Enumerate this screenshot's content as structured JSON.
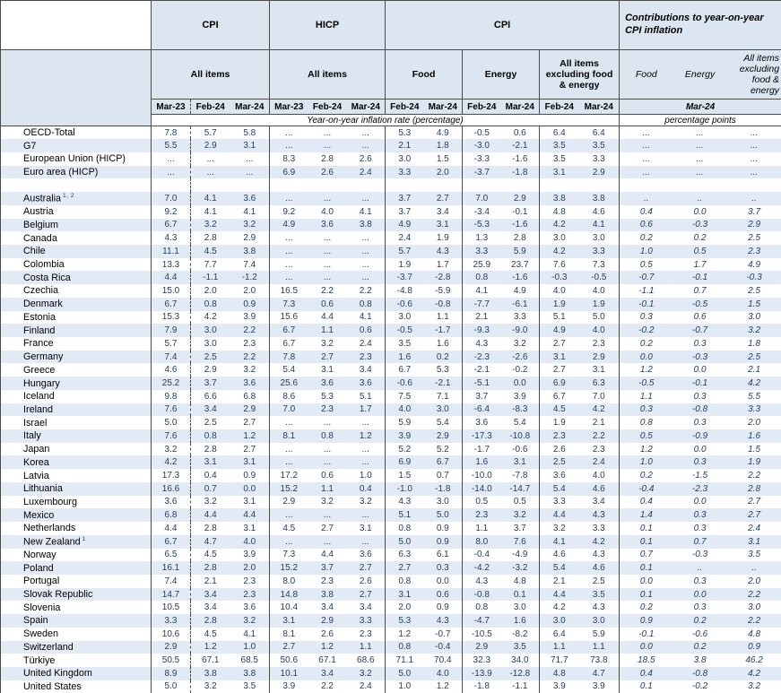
{
  "colors": {
    "header-fill": "#dce6f1",
    "zebra-fill": "#e2ebf5",
    "line": "#4a4a4a",
    "number": "#1f3a5f",
    "text": "#000000"
  },
  "header": {
    "group_cpi_all": "CPI",
    "group_hicp": "HICP",
    "group_cpi_components": "CPI",
    "group_contributions": "Contributions to year-on-year CPI inflation",
    "sub_all_items_cpi": "All items",
    "sub_all_items_hicp": "All items",
    "sub_food": "Food",
    "sub_energy": "Energy",
    "sub_core": "All items excluding food & energy",
    "sub_contrib_food": "Food",
    "sub_contrib_energy": "Energy",
    "sub_contrib_core": "All items excluding food & energy",
    "periods": [
      "Mar-23",
      "Feb-24",
      "Mar-24",
      "Mar-23",
      "Feb-24",
      "Mar-24",
      "Feb-24",
      "Mar-24",
      "Feb-24",
      "Mar-24",
      "Feb-24",
      "Mar-24"
    ],
    "contrib_period": "Mar-24",
    "unit_rates": "Year-on-year inflation rate (percentage)",
    "unit_points": "percentage points"
  },
  "columns": {
    "keys": [
      "cpi-mar23",
      "cpi-feb24",
      "cpi-mar24",
      "hicp-mar23",
      "hicp-feb24",
      "hicp-mar24",
      "food-feb24",
      "food-mar24",
      "energy-feb24",
      "energy-mar24",
      "core-feb24",
      "core-mar24",
      "contrib-food",
      "contrib-energy",
      "contrib-core"
    ]
  },
  "rows": [
    {
      "name": "OECD-Total",
      "sup": "",
      "values": [
        "7.8",
        "5.7",
        "5.8",
        "...",
        "...",
        "...",
        "5.3",
        "4.9",
        "-0.5",
        "0.6",
        "6.4",
        "6.4",
        "...",
        "...",
        "..."
      ]
    },
    {
      "name": "G7",
      "sup": "",
      "values": [
        "5.5",
        "2.9",
        "3.1",
        "...",
        "...",
        "...",
        "2.1",
        "1.8",
        "-3.0",
        "-2.1",
        "3.5",
        "3.5",
        "...",
        "...",
        "..."
      ]
    },
    {
      "name": "European Union (HICP)",
      "sup": "",
      "values": [
        "...",
        "...",
        "...",
        "8.3",
        "2.8",
        "2.6",
        "3.0",
        "1.5",
        "-3.3",
        "-1.6",
        "3.5",
        "3.3",
        "...",
        "...",
        "..."
      ]
    },
    {
      "name": "Euro area (HICP)",
      "sup": "",
      "values": [
        "...",
        "...",
        "...",
        "6.9",
        "2.6",
        "2.4",
        "3.3",
        "2.0",
        "-3.7",
        "-1.8",
        "3.1",
        "2.9",
        "...",
        "...",
        "..."
      ]
    },
    {
      "name": "",
      "sup": "",
      "values": [
        "",
        "",
        "",
        "",
        "",
        "",
        "",
        "",
        "",
        "",
        "",
        "",
        "",
        "",
        ""
      ]
    },
    {
      "name": "Australia",
      "sup": "1, 2",
      "values": [
        "7.0",
        "4.1",
        "3.6",
        "...",
        "...",
        "...",
        "3.7",
        "2.7",
        "7.0",
        "2.9",
        "3.8",
        "3.8",
        "..",
        "..",
        ".."
      ]
    },
    {
      "name": "Austria",
      "sup": "",
      "values": [
        "9.2",
        "4.1",
        "4.1",
        "9.2",
        "4.0",
        "4.1",
        "3.7",
        "3.4",
        "-3.4",
        "-0.1",
        "4.8",
        "4.6",
        "0.4",
        "0.0",
        "3.7"
      ]
    },
    {
      "name": "Belgium",
      "sup": "",
      "values": [
        "6.7",
        "3.2",
        "3.2",
        "4.9",
        "3.6",
        "3.8",
        "4.9",
        "3.1",
        "-5.3",
        "-1.6",
        "4.2",
        "4.1",
        "0.6",
        "-0.3",
        "2.9"
      ]
    },
    {
      "name": "Canada",
      "sup": "",
      "values": [
        "4.3",
        "2.8",
        "2.9",
        "...",
        "...",
        "...",
        "2.4",
        "1.9",
        "1.3",
        "2.8",
        "3.0",
        "3.0",
        "0.2",
        "0.2",
        "2.5"
      ]
    },
    {
      "name": "Chile",
      "sup": "",
      "values": [
        "11.1",
        "4.5",
        "3.8",
        "...",
        "...",
        "...",
        "5.7",
        "4.3",
        "3.3",
        "5.9",
        "4.2",
        "3.3",
        "1.0",
        "0.5",
        "2.3"
      ]
    },
    {
      "name": "Colombia",
      "sup": "",
      "values": [
        "13.3",
        "7.7",
        "7.4",
        "...",
        "...",
        "...",
        "1.9",
        "1.7",
        "25.9",
        "23.7",
        "7.6",
        "7.3",
        "0.5",
        "1.7",
        "4.9"
      ]
    },
    {
      "name": "Costa Rica",
      "sup": "",
      "values": [
        "4.4",
        "-1.1",
        "-1.2",
        "...",
        "...",
        "...",
        "-3.7",
        "-2.8",
        "0.8",
        "-1.6",
        "-0.3",
        "-0.5",
        "-0.7",
        "-0.1",
        "-0.3"
      ]
    },
    {
      "name": "Czechia",
      "sup": "",
      "values": [
        "15.0",
        "2.0",
        "2.0",
        "16.5",
        "2.2",
        "2.2",
        "-4.8",
        "-5.9",
        "4.1",
        "4.9",
        "4.0",
        "4.0",
        "-1.1",
        "0.7",
        "2.5"
      ]
    },
    {
      "name": "Denmark",
      "sup": "",
      "values": [
        "6.7",
        "0.8",
        "0.9",
        "7.3",
        "0.6",
        "0.8",
        "-0.6",
        "-0.8",
        "-7.7",
        "-6.1",
        "1.9",
        "1.9",
        "-0.1",
        "-0.5",
        "1.5"
      ]
    },
    {
      "name": "Estonia",
      "sup": "",
      "values": [
        "15.3",
        "4.2",
        "3.9",
        "15.6",
        "4.4",
        "4.1",
        "3.0",
        "1.1",
        "2.1",
        "3.3",
        "5.1",
        "5.0",
        "0.3",
        "0.6",
        "3.0"
      ]
    },
    {
      "name": "Finland",
      "sup": "",
      "values": [
        "7.9",
        "3.0",
        "2.2",
        "6.7",
        "1.1",
        "0.6",
        "-0.5",
        "-1.7",
        "-9.3",
        "-9.0",
        "4.9",
        "4.0",
        "-0.2",
        "-0.7",
        "3.2"
      ]
    },
    {
      "name": "France",
      "sup": "",
      "values": [
        "5.7",
        "3.0",
        "2.3",
        "6.7",
        "3.2",
        "2.4",
        "3.5",
        "1.6",
        "4.3",
        "3.2",
        "2.7",
        "2.3",
        "0.2",
        "0.3",
        "1.8"
      ]
    },
    {
      "name": "Germany",
      "sup": "",
      "values": [
        "7.4",
        "2.5",
        "2.2",
        "7.8",
        "2.7",
        "2.3",
        "1.6",
        "0.2",
        "-2.3",
        "-2.6",
        "3.1",
        "2.9",
        "0.0",
        "-0.3",
        "2.5"
      ]
    },
    {
      "name": "Greece",
      "sup": "",
      "values": [
        "4.6",
        "2.9",
        "3.2",
        "5.4",
        "3.1",
        "3.4",
        "6.7",
        "5.3",
        "-2.1",
        "-0.2",
        "2.7",
        "3.1",
        "1.2",
        "0.0",
        "2.1"
      ]
    },
    {
      "name": "Hungary",
      "sup": "",
      "values": [
        "25.2",
        "3.7",
        "3.6",
        "25.6",
        "3.6",
        "3.6",
        "-0.6",
        "-2.1",
        "-5.1",
        "0.0",
        "6.9",
        "6.3",
        "-0.5",
        "-0.1",
        "4.2"
      ]
    },
    {
      "name": "Iceland",
      "sup": "",
      "values": [
        "9.8",
        "6.6",
        "6.8",
        "8.6",
        "5.3",
        "5.1",
        "7.5",
        "7.1",
        "3.7",
        "3.9",
        "6.7",
        "7.0",
        "1.1",
        "0.3",
        "5.5"
      ]
    },
    {
      "name": "Ireland",
      "sup": "",
      "values": [
        "7.6",
        "3.4",
        "2.9",
        "7.0",
        "2.3",
        "1.7",
        "4.0",
        "3.0",
        "-6.4",
        "-8.3",
        "4.5",
        "4.2",
        "0.3",
        "-0.8",
        "3.3"
      ]
    },
    {
      "name": "Israel",
      "sup": "",
      "values": [
        "5.0",
        "2.5",
        "2.7",
        "...",
        "...",
        "...",
        "5.9",
        "5.4",
        "3.6",
        "5.4",
        "1.9",
        "2.1",
        "0.8",
        "0.3",
        "2.0"
      ]
    },
    {
      "name": "Italy",
      "sup": "",
      "values": [
        "7.6",
        "0.8",
        "1.2",
        "8.1",
        "0.8",
        "1.2",
        "3.9",
        "2.9",
        "-17.3",
        "-10.8",
        "2.3",
        "2.2",
        "0.5",
        "-0.9",
        "1.6"
      ]
    },
    {
      "name": "Japan",
      "sup": "",
      "values": [
        "3.2",
        "2.8",
        "2.7",
        "...",
        "...",
        "...",
        "5.2",
        "5.2",
        "-1.7",
        "-0.6",
        "2.6",
        "2.3",
        "1.2",
        "0.0",
        "1.5"
      ]
    },
    {
      "name": "Korea",
      "sup": "",
      "values": [
        "4.2",
        "3.1",
        "3.1",
        "...",
        "...",
        "...",
        "6.9",
        "6.7",
        "1.6",
        "3.1",
        "2.5",
        "2.4",
        "1.0",
        "0.3",
        "1.9"
      ]
    },
    {
      "name": "Latvia",
      "sup": "",
      "values": [
        "17.3",
        "0.4",
        "0.9",
        "17.2",
        "0.6",
        "1.0",
        "1.5",
        "0.7",
        "-10.0",
        "-7.8",
        "3.6",
        "4.0",
        "0.2",
        "-1.5",
        "2.2"
      ]
    },
    {
      "name": "Lithuania",
      "sup": "",
      "values": [
        "16.6",
        "0.7",
        "0.0",
        "15.2",
        "1.1",
        "0.4",
        "-1.0",
        "-1.8",
        "-14.0",
        "-14.7",
        "5.4",
        "4.6",
        "-0.4",
        "-2.3",
        "2.8"
      ]
    },
    {
      "name": "Luxembourg",
      "sup": "",
      "values": [
        "3.6",
        "3.2",
        "3.1",
        "2.9",
        "3.2",
        "3.2",
        "4.3",
        "3.0",
        "0.5",
        "0.5",
        "3.3",
        "3.4",
        "0.4",
        "0.0",
        "2.7"
      ]
    },
    {
      "name": "Mexico",
      "sup": "",
      "values": [
        "6.8",
        "4.4",
        "4.4",
        "...",
        "...",
        "...",
        "5.1",
        "5.0",
        "2.3",
        "3.2",
        "4.4",
        "4.3",
        "1.4",
        "0.3",
        "2.7"
      ]
    },
    {
      "name": "Netherlands",
      "sup": "",
      "values": [
        "4.4",
        "2.8",
        "3.1",
        "4.5",
        "2.7",
        "3.1",
        "0.8",
        "0.9",
        "1.1",
        "3.7",
        "3.2",
        "3.3",
        "0.1",
        "0.3",
        "2.4"
      ]
    },
    {
      "name": "New Zealand",
      "sup": "1",
      "values": [
        "6.7",
        "4.7",
        "4.0",
        "...",
        "...",
        "...",
        "5.0",
        "0.9",
        "8.0",
        "7.6",
        "4.1",
        "4.2",
        "0.1",
        "0.7",
        "3.1"
      ]
    },
    {
      "name": "Norway",
      "sup": "",
      "values": [
        "6.5",
        "4.5",
        "3.9",
        "7.3",
        "4.4",
        "3.6",
        "6.3",
        "6.1",
        "-0.4",
        "-4.9",
        "4.6",
        "4.3",
        "0.7",
        "-0.3",
        "3.5"
      ]
    },
    {
      "name": "Poland",
      "sup": "",
      "values": [
        "16.1",
        "2.8",
        "2.0",
        "15.2",
        "3.7",
        "2.7",
        "2.7",
        "0.3",
        "-4.2",
        "-3.2",
        "5.4",
        "4.6",
        "0.1",
        "..",
        ".."
      ]
    },
    {
      "name": "Portugal",
      "sup": "",
      "values": [
        "7.4",
        "2.1",
        "2.3",
        "8.0",
        "2.3",
        "2.6",
        "0.8",
        "0.0",
        "4.3",
        "4.8",
        "2.1",
        "2.5",
        "0.0",
        "0.3",
        "2.0"
      ]
    },
    {
      "name": "Slovak Republic",
      "sup": "",
      "values": [
        "14.7",
        "3.4",
        "2.3",
        "14.8",
        "3.8",
        "2.7",
        "3.1",
        "0.6",
        "-0.8",
        "0.1",
        "4.4",
        "3.5",
        "0.1",
        "0.0",
        "2.2"
      ]
    },
    {
      "name": "Slovenia",
      "sup": "",
      "values": [
        "10.5",
        "3.4",
        "3.6",
        "10.4",
        "3.4",
        "3.4",
        "2.0",
        "0.9",
        "0.8",
        "3.0",
        "4.2",
        "4.3",
        "0.2",
        "0.3",
        "3.0"
      ]
    },
    {
      "name": "Spain",
      "sup": "",
      "values": [
        "3.3",
        "2.8",
        "3.2",
        "3.1",
        "2.9",
        "3.3",
        "5.3",
        "4.3",
        "-4.7",
        "1.6",
        "3.0",
        "3.0",
        "0.9",
        "0.2",
        "2.2"
      ]
    },
    {
      "name": "Sweden",
      "sup": "",
      "values": [
        "10.6",
        "4.5",
        "4.1",
        "8.1",
        "2.6",
        "2.3",
        "1.2",
        "-0.7",
        "-10.5",
        "-8.2",
        "6.4",
        "5.9",
        "-0.1",
        "-0.6",
        "4.8"
      ]
    },
    {
      "name": "Switzerland",
      "sup": "",
      "values": [
        "2.9",
        "1.2",
        "1.0",
        "2.7",
        "1.2",
        "1.1",
        "0.8",
        "-0.4",
        "2.9",
        "3.5",
        "1.1",
        "1.1",
        "0.0",
        "0.2",
        "0.9"
      ]
    },
    {
      "name": "Türkiye",
      "sup": "",
      "values": [
        "50.5",
        "67.1",
        "68.5",
        "50.6",
        "67.1",
        "68.6",
        "71.1",
        "70.4",
        "32.3",
        "34.0",
        "71.7",
        "73.8",
        "18.5",
        "3.8",
        "46.2"
      ]
    },
    {
      "name": "United Kingdom",
      "sup": "",
      "values": [
        "8.9",
        "3.8",
        "3.8",
        "10.1",
        "3.4",
        "3.2",
        "5.0",
        "4.0",
        "-13.9",
        "-12.8",
        "4.8",
        "4.7",
        "0.4",
        "-0.8",
        "4.2"
      ]
    },
    {
      "name": "United States",
      "sup": "",
      "values": [
        "5.0",
        "3.2",
        "3.5",
        "3.9",
        "2.2",
        "2.4",
        "1.0",
        "1.2",
        "-1.8",
        "-1.1",
        "3.9",
        "3.9",
        "0.1",
        "-0.2",
        "3.2"
      ]
    }
  ]
}
